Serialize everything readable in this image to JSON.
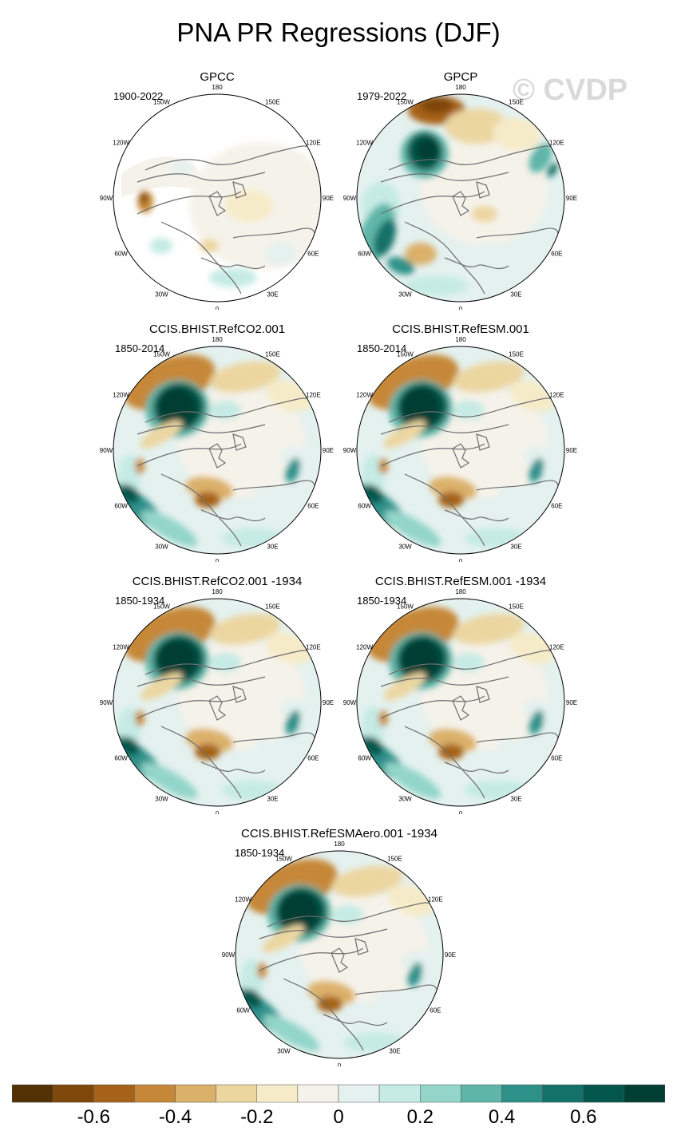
{
  "title": "PNA PR Regressions (DJF)",
  "watermark": "© CVDP",
  "lon_labels": {
    "top": "180",
    "bottom": "0",
    "left": "90W",
    "right": "90E",
    "upper_left_1": "150W",
    "upper_left_2": "120W",
    "upper_right_1": "150E",
    "upper_right_2": "120E",
    "lower_left_1": "60W",
    "lower_left_2": "30W",
    "lower_right_1": "60E",
    "lower_right_2": "30E"
  },
  "panels": [
    {
      "title": "GPCC",
      "years": "1900-2022",
      "pattern": "gpcc"
    },
    {
      "title": "GPCP",
      "years": "1979-2022",
      "pattern": "gpcp"
    },
    {
      "title": "CCIS.BHIST.RefCO2.001",
      "years": "1850-2014",
      "pattern": "model"
    },
    {
      "title": "CCIS.BHIST.RefESM.001",
      "years": "1850-2014",
      "pattern": "model"
    },
    {
      "title": "CCIS.BHIST.RefCO2.001 -1934",
      "years": "1850-1934",
      "pattern": "model"
    },
    {
      "title": "CCIS.BHIST.RefESM.001 -1934",
      "years": "1850-1934",
      "pattern": "model"
    },
    {
      "title": "CCIS.BHIST.RefESMAero.001 -1934",
      "years": "1850-1934",
      "pattern": "model"
    }
  ],
  "colorbar": {
    "colors": [
      "#543005",
      "#7f4709",
      "#a66219",
      "#c68838",
      "#dbb06b",
      "#ecd6a0",
      "#f6ebc8",
      "#f5f2ea",
      "#e4f1ef",
      "#c5ebe4",
      "#93d5c9",
      "#5fb5a8",
      "#2d918a",
      "#137169",
      "#03564b",
      "#013e33"
    ],
    "ticks": [
      {
        "label": "-0.6",
        "index": 1
      },
      {
        "label": "-0.4",
        "index": 3
      },
      {
        "label": "-0.2",
        "index": 5
      },
      {
        "label": "0",
        "index": 7
      },
      {
        "label": "0.2",
        "index": 9
      },
      {
        "label": "0.4",
        "index": 11
      },
      {
        "label": "0.6",
        "index": 13
      }
    ]
  }
}
